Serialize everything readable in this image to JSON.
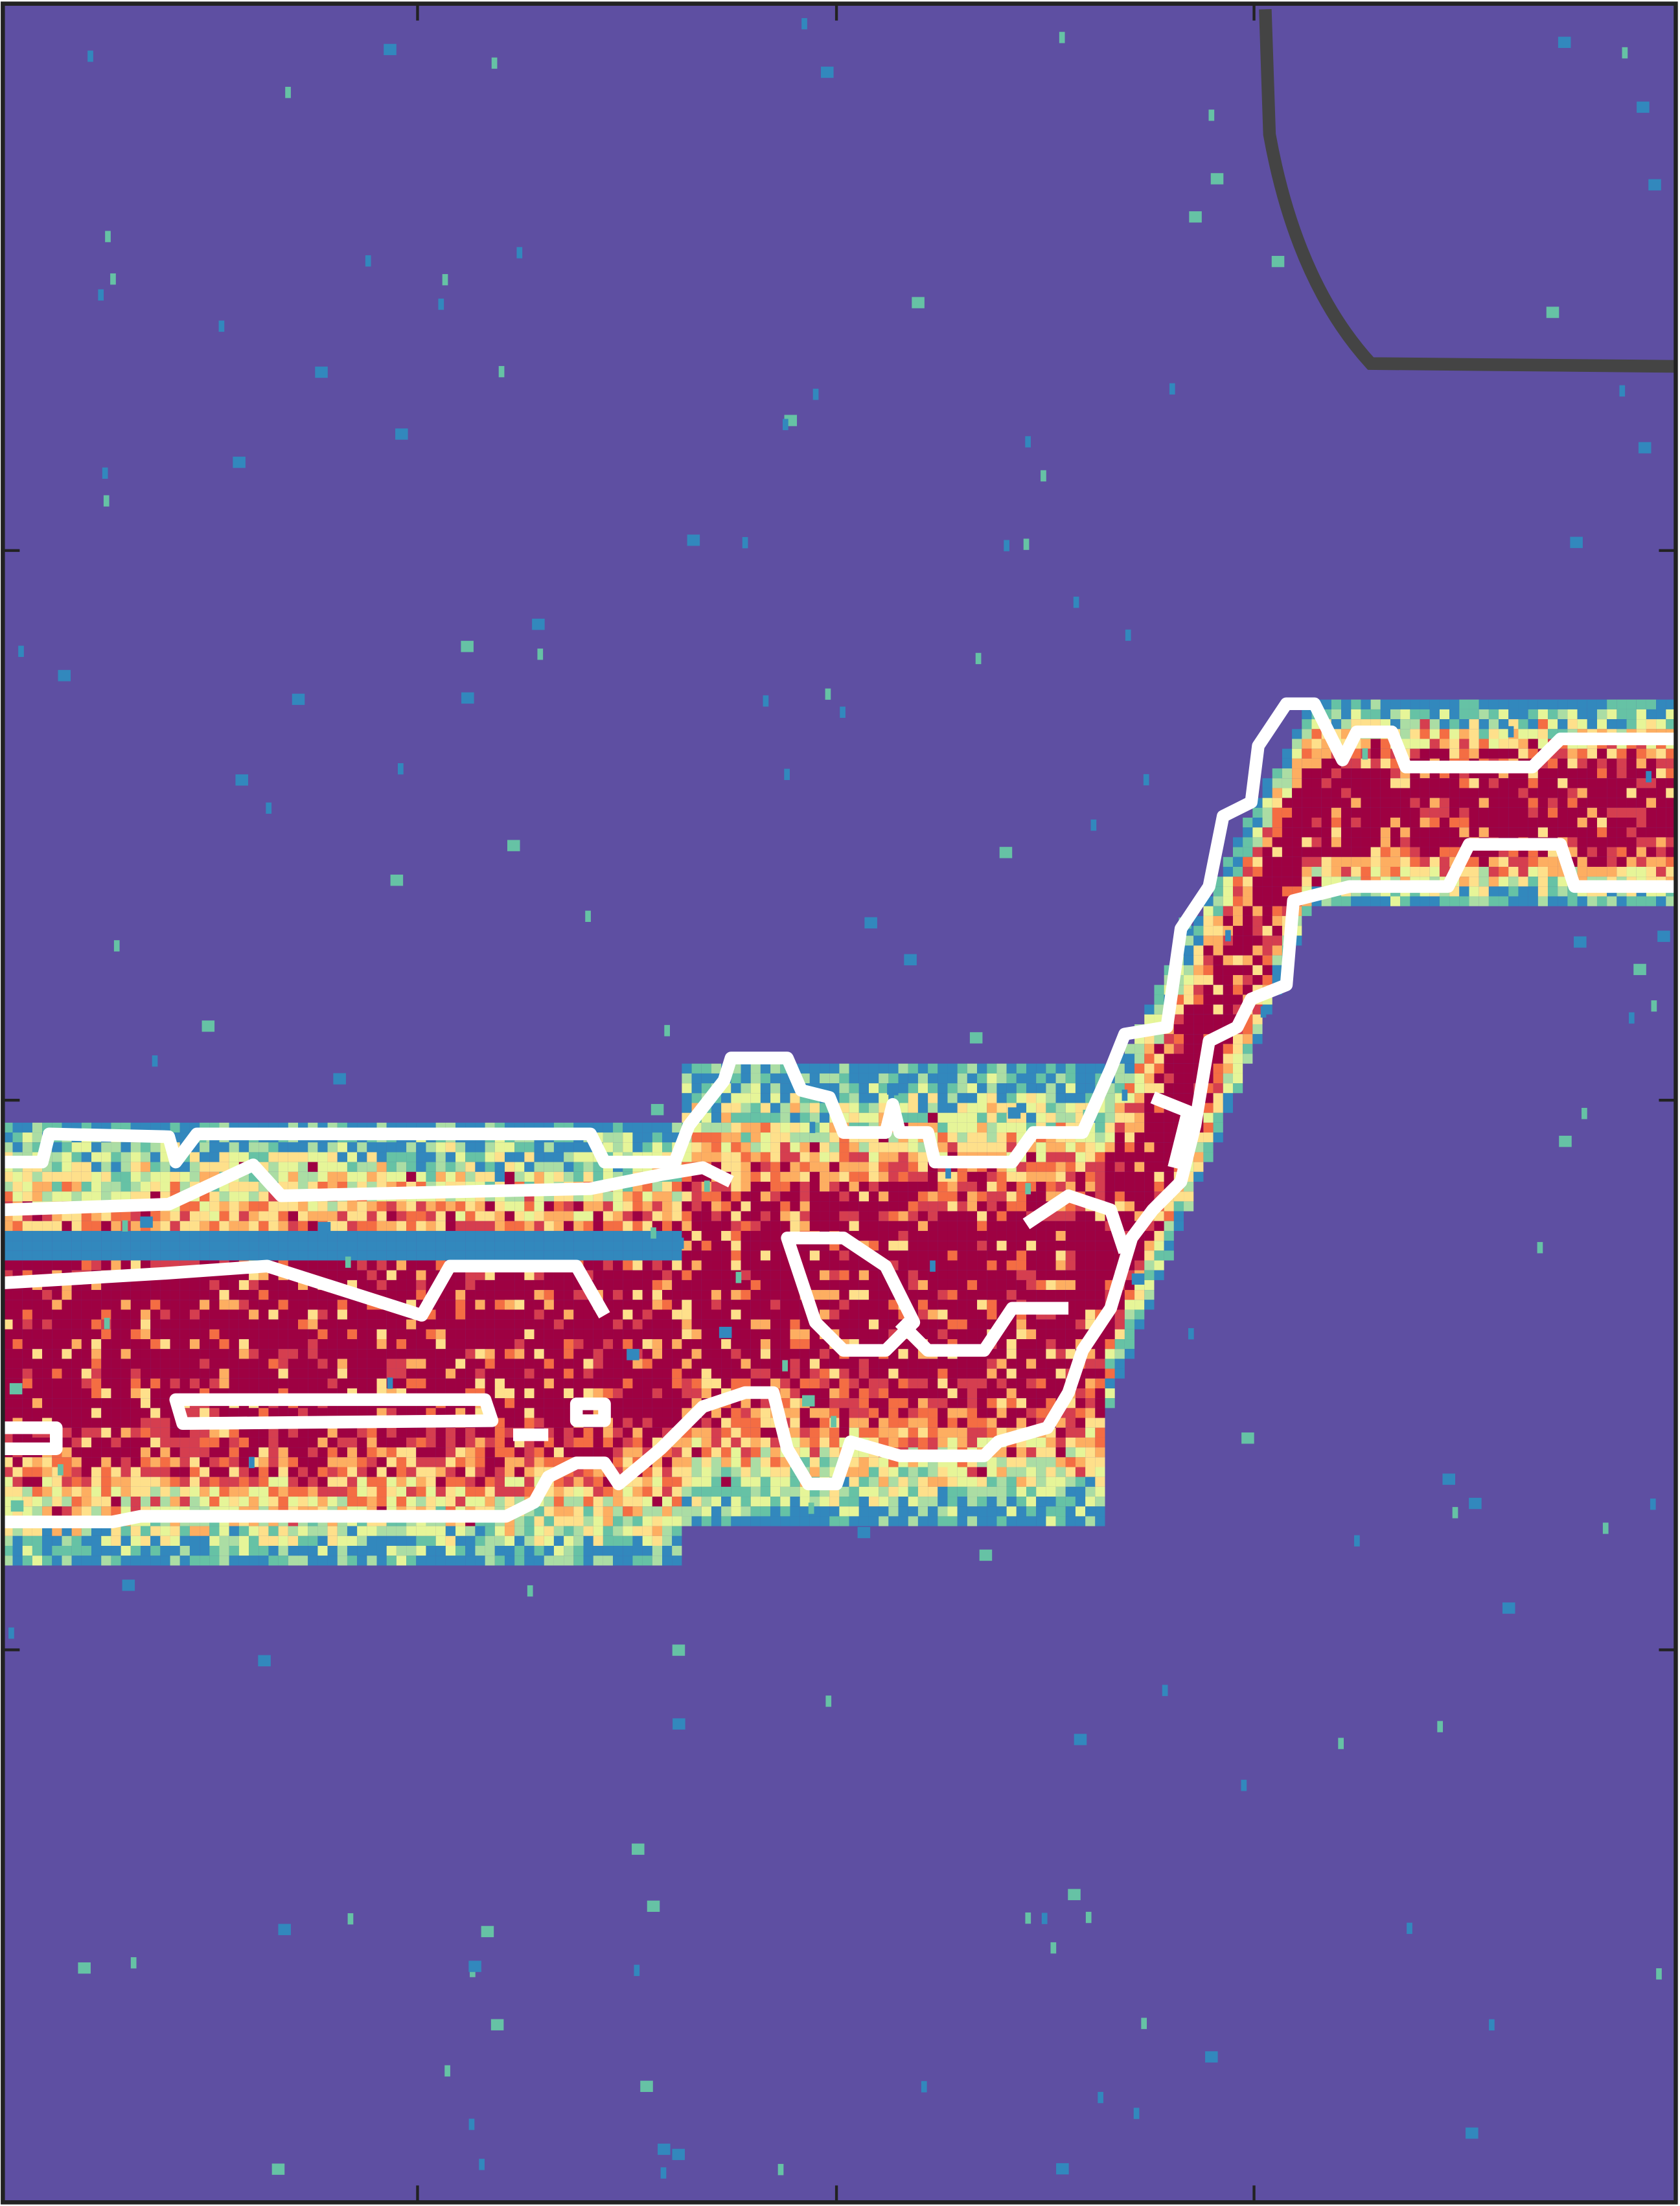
{
  "chart_data": {
    "type": "heatmap",
    "colors": [
      "#5e4fa2",
      "#3288bd",
      "#66c2a5",
      "#abdda4",
      "#e6f598",
      "#fee08b",
      "#fdae61",
      "#f46d43",
      "#d53e4f",
      "#9e0142"
    ]
  }
}
